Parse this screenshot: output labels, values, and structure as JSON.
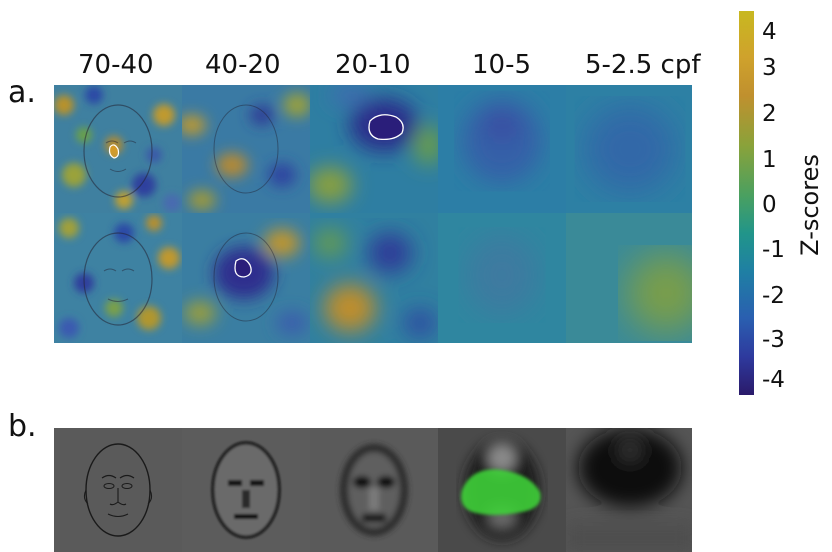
{
  "panel_a": {
    "label": "a.",
    "bands": [
      "70-40",
      "40-20",
      "20-10",
      "10-5",
      "5-2.5 cpf"
    ]
  },
  "panel_b": {
    "label": "b."
  },
  "colorbar": {
    "title": "Z-scores",
    "ticks": [
      "4",
      "3",
      "2",
      "1",
      "0",
      "-1",
      "-2",
      "-3",
      "-4"
    ],
    "colors": [
      "#c8b820",
      "#c0902e",
      "#4aa060",
      "#21958a",
      "#1f7fa4",
      "#2e3a9e",
      "#2a1a6a"
    ]
  }
}
